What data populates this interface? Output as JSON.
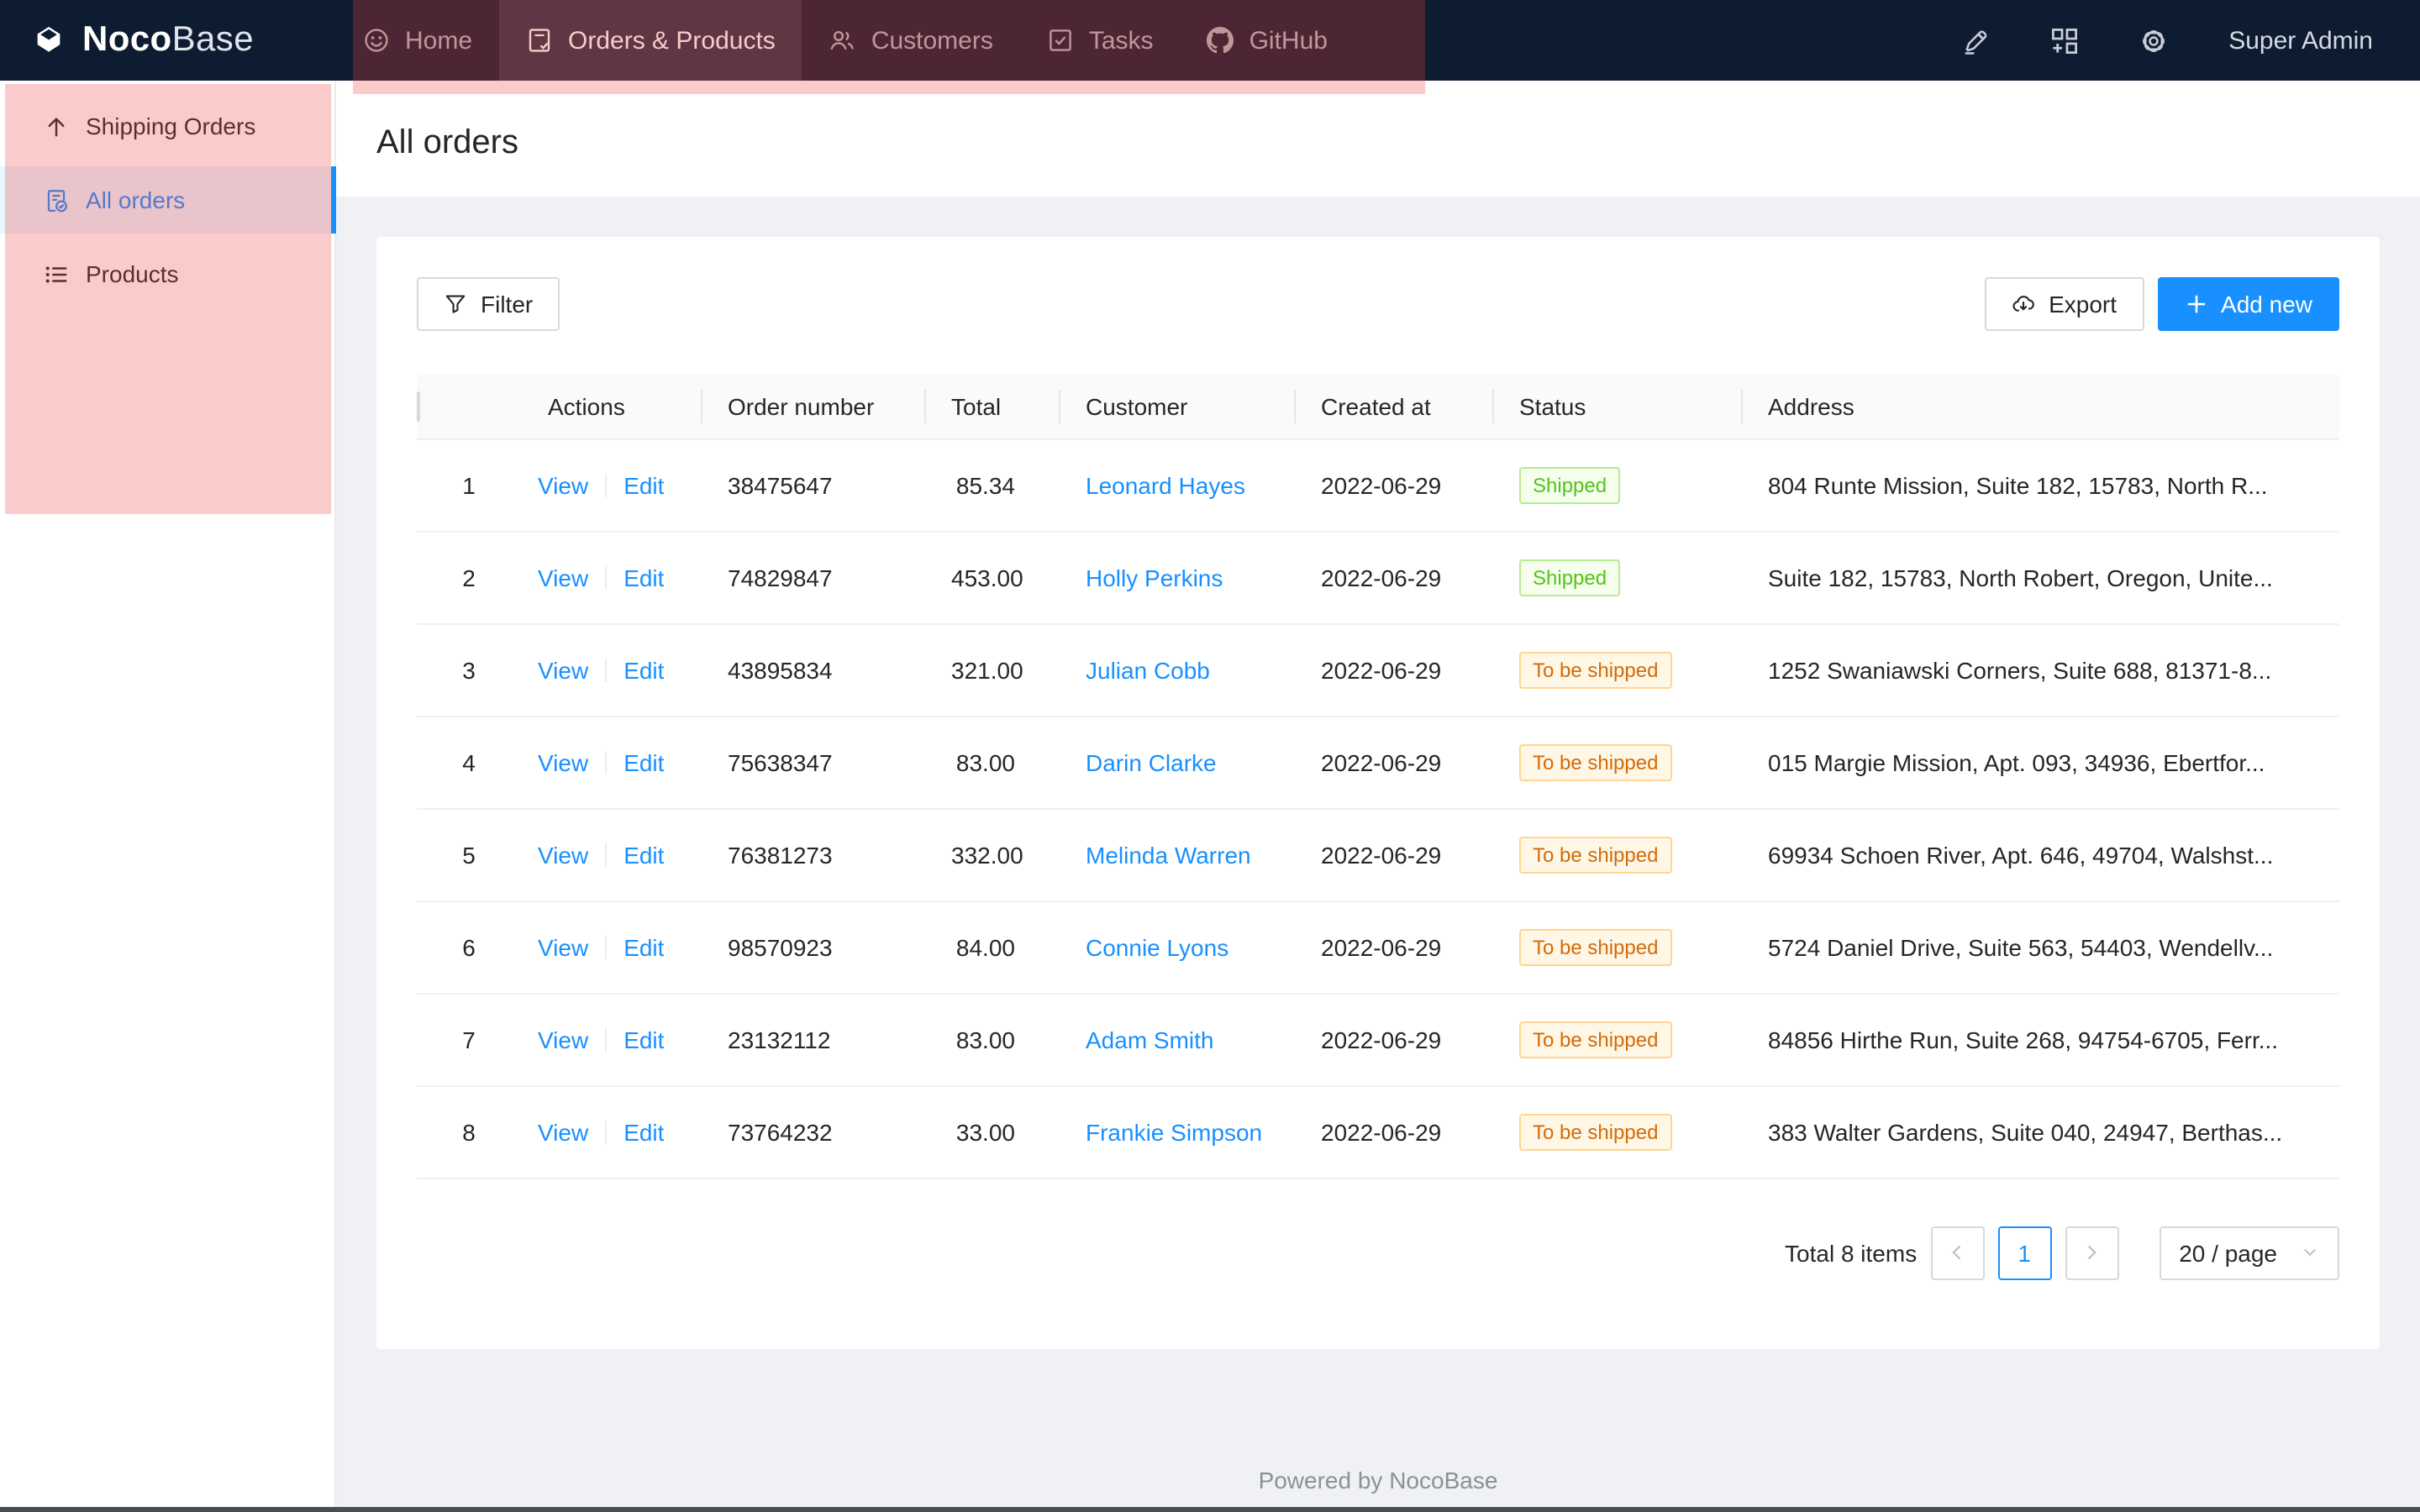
{
  "brand": {
    "bold": "Noco",
    "light": "Base"
  },
  "top_nav": {
    "items": [
      {
        "label": "Home",
        "icon": "smile-icon",
        "selected": false
      },
      {
        "label": "Orders & Products",
        "icon": "form-icon",
        "selected": true
      },
      {
        "label": "Customers",
        "icon": "team-icon",
        "selected": false
      },
      {
        "label": "Tasks",
        "icon": "check-square-icon",
        "selected": false
      },
      {
        "label": "GitHub",
        "icon": "github-icon",
        "selected": false
      }
    ]
  },
  "header_right": {
    "icons": [
      "highlighter-icon",
      "appstore-add-icon",
      "settings-icon"
    ],
    "user_label": "Super Admin"
  },
  "sidebar": {
    "items": [
      {
        "label": "Shipping Orders",
        "icon": "arrow-up-icon",
        "active": false
      },
      {
        "label": "All orders",
        "icon": "file-done-icon",
        "active": true
      },
      {
        "label": "Products",
        "icon": "unordered-list-icon",
        "active": false
      }
    ]
  },
  "page": {
    "title": "All orders"
  },
  "toolbar": {
    "filter_label": "Filter",
    "export_label": "Export",
    "add_new_label": "Add new"
  },
  "table": {
    "columns": [
      "",
      "Actions",
      "Order number",
      "Total",
      "Customer",
      "Created at",
      "Status",
      "Address"
    ],
    "action_labels": [
      "View",
      "Edit"
    ],
    "rows": [
      {
        "index": 1,
        "order_number": "38475647",
        "total": "85.34",
        "customer": "Leonard Hayes",
        "created_at": "2022-06-29",
        "status": "Shipped",
        "status_color": "green",
        "address": "804 Runte Mission, Suite 182, 15783, North R..."
      },
      {
        "index": 2,
        "order_number": "74829847",
        "total": "453.00",
        "customer": "Holly Perkins",
        "created_at": "2022-06-29",
        "status": "Shipped",
        "status_color": "green",
        "address": "Suite 182, 15783, North Robert, Oregon, Unite..."
      },
      {
        "index": 3,
        "order_number": "43895834",
        "total": "321.00",
        "customer": "Julian Cobb",
        "created_at": "2022-06-29",
        "status": "To be shipped",
        "status_color": "orange",
        "address": "1252 Swaniawski Corners, Suite 688, 81371-8..."
      },
      {
        "index": 4,
        "order_number": "75638347",
        "total": "83.00",
        "customer": "Darin Clarke",
        "created_at": "2022-06-29",
        "status": "To be shipped",
        "status_color": "orange",
        "address": "015 Margie Mission, Apt. 093, 34936, Ebertfor..."
      },
      {
        "index": 5,
        "order_number": "76381273",
        "total": "332.00",
        "customer": "Melinda Warren",
        "created_at": "2022-06-29",
        "status": "To be shipped",
        "status_color": "orange",
        "address": "69934 Schoen River, Apt. 646, 49704, Walshst..."
      },
      {
        "index": 6,
        "order_number": "98570923",
        "total": "84.00",
        "customer": "Connie Lyons",
        "created_at": "2022-06-29",
        "status": "To be shipped",
        "status_color": "orange",
        "address": "5724 Daniel Drive, Suite 563, 54403, Wendellv..."
      },
      {
        "index": 7,
        "order_number": "23132112",
        "total": "83.00",
        "customer": "Adam Smith",
        "created_at": "2022-06-29",
        "status": "To be shipped",
        "status_color": "orange",
        "address": "84856 Hirthe Run, Suite 268, 94754-6705, Ferr..."
      },
      {
        "index": 8,
        "order_number": "73764232",
        "total": "33.00",
        "customer": "Frankie Simpson",
        "created_at": "2022-06-29",
        "status": "To be shipped",
        "status_color": "orange",
        "address": "383 Walter Gardens, Suite 040, 24947, Berthas..."
      }
    ]
  },
  "pagination": {
    "total_label": "Total 8 items",
    "page": "1",
    "page_size_label": "20 / page"
  },
  "footer": {
    "text": "Powered by NocoBase"
  },
  "colors": {
    "primary": "#1890ff",
    "header_bg": "#0d1c30",
    "content_bg": "#eff1f5",
    "tag_green_text": "#52c41a",
    "tag_orange_text": "#d46b08",
    "annotation_overlay": "rgba(242,64,64,0.28)",
    "active_item_bg": "#e6f7ff"
  }
}
